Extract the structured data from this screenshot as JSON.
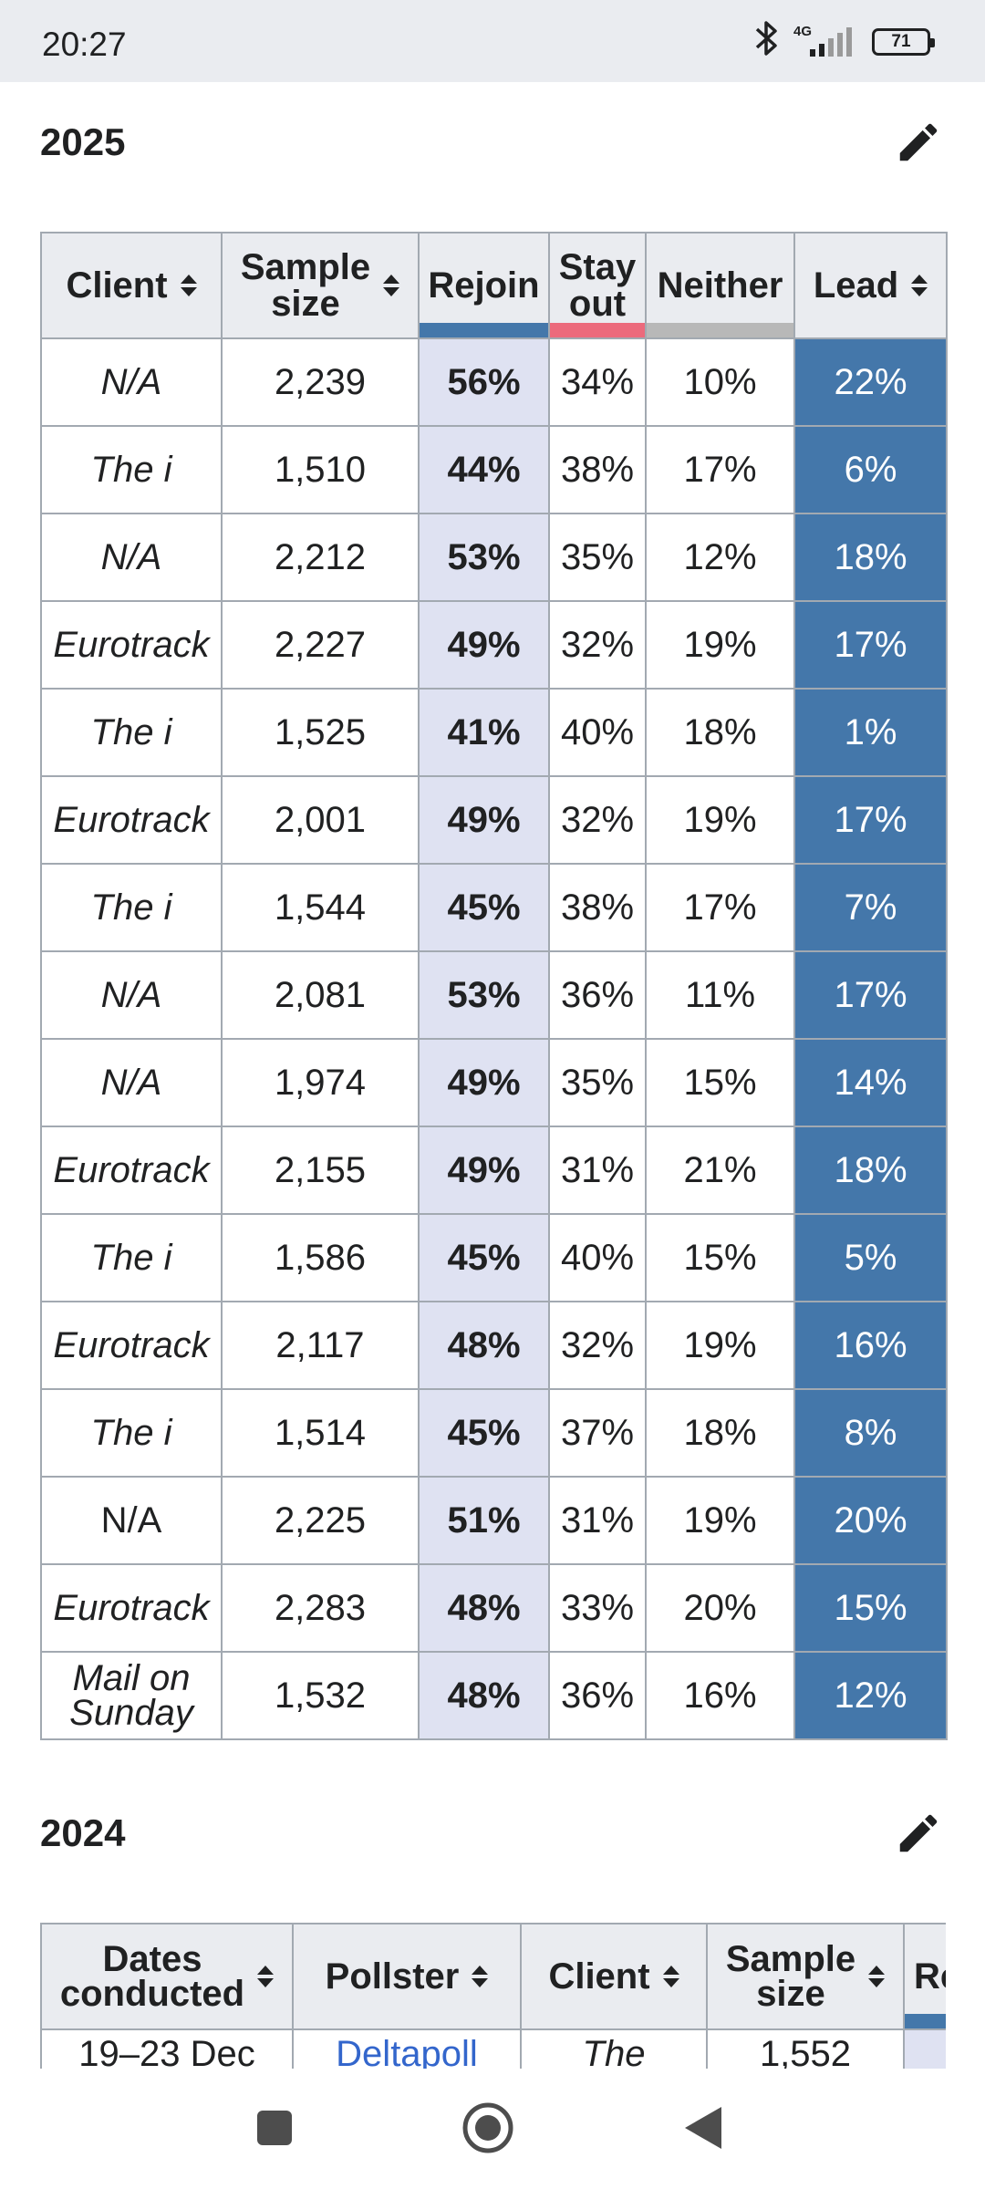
{
  "status_bar": {
    "time": "20:27",
    "network": "4G",
    "battery": "71",
    "icons": [
      "bluetooth-icon",
      "signal-icon",
      "battery-icon"
    ]
  },
  "section_2025": {
    "title": "2025",
    "edit_icon": "pencil-icon",
    "headers": {
      "client": "Client",
      "sample_size_1": "Sample",
      "sample_size_2": "size",
      "rejoin": "Rejoin",
      "stay_out_1": "Stay",
      "stay_out_2": "out",
      "neither": "Neither",
      "lead": "Lead"
    },
    "party_colors": {
      "rejoin": "#4477aa",
      "stay_out": "#ec6a7c",
      "neither": "#b8b8b8"
    },
    "lead_color": "#4477aa",
    "rejoin_cell_color": "#dfe2f2",
    "rows": [
      {
        "client": "N/A",
        "sample": "2,239",
        "rejoin": "56%",
        "stay": "34%",
        "neither": "10%",
        "lead": "22%"
      },
      {
        "client": "The i",
        "sample": "1,510",
        "rejoin": "44%",
        "stay": "38%",
        "neither": "17%",
        "lead": "6%"
      },
      {
        "client": "N/A",
        "sample": "2,212",
        "rejoin": "53%",
        "stay": "35%",
        "neither": "12%",
        "lead": "18%"
      },
      {
        "client": "Eurotrack",
        "sample": "2,227",
        "rejoin": "49%",
        "stay": "32%",
        "neither": "19%",
        "lead": "17%"
      },
      {
        "client": "The i",
        "sample": "1,525",
        "rejoin": "41%",
        "stay": "40%",
        "neither": "18%",
        "lead": "1%"
      },
      {
        "client": "Eurotrack",
        "sample": "2,001",
        "rejoin": "49%",
        "stay": "32%",
        "neither": "19%",
        "lead": "17%"
      },
      {
        "client": "The i",
        "sample": "1,544",
        "rejoin": "45%",
        "stay": "38%",
        "neither": "17%",
        "lead": "7%"
      },
      {
        "client": "N/A",
        "sample": "2,081",
        "rejoin": "53%",
        "stay": "36%",
        "neither": "11%",
        "lead": "17%"
      },
      {
        "client": "N/A",
        "sample": "1,974",
        "rejoin": "49%",
        "stay": "35%",
        "neither": "15%",
        "lead": "14%"
      },
      {
        "client": "Eurotrack",
        "sample": "2,155",
        "rejoin": "49%",
        "stay": "31%",
        "neither": "21%",
        "lead": "18%"
      },
      {
        "client": "The i",
        "sample": "1,586",
        "rejoin": "45%",
        "stay": "40%",
        "neither": "15%",
        "lead": "5%"
      },
      {
        "client": "Eurotrack",
        "sample": "2,117",
        "rejoin": "48%",
        "stay": "32%",
        "neither": "19%",
        "lead": "16%"
      },
      {
        "client": "The i",
        "sample": "1,514",
        "rejoin": "45%",
        "stay": "37%",
        "neither": "18%",
        "lead": "8%"
      },
      {
        "client": "N/A",
        "sample": "2,225",
        "rejoin": "51%",
        "stay": "31%",
        "neither": "19%",
        "lead": "20%",
        "upright": true
      },
      {
        "client": "Eurotrack",
        "sample": "2,283",
        "rejoin": "48%",
        "stay": "33%",
        "neither": "20%",
        "lead": "15%"
      },
      {
        "client_1": "Mail on",
        "client_2": "Sunday",
        "sample": "1,532",
        "rejoin": "48%",
        "stay": "36%",
        "neither": "16%",
        "lead": "12%"
      }
    ]
  },
  "section_2024": {
    "title": "2024",
    "edit_icon": "pencil-icon",
    "headers": {
      "dates_1": "Dates",
      "dates_2": "conducted",
      "pollster": "Pollster",
      "client": "Client",
      "sample_1": "Sample",
      "sample_2": "size",
      "rejoin_partial": "Re"
    },
    "first_row": {
      "dates": "19–23 Dec",
      "pollster": "Deltapoll",
      "client": "The",
      "sample": "1,552"
    }
  },
  "nav_bar": {
    "buttons": [
      "recents-button",
      "home-button",
      "back-button"
    ]
  }
}
